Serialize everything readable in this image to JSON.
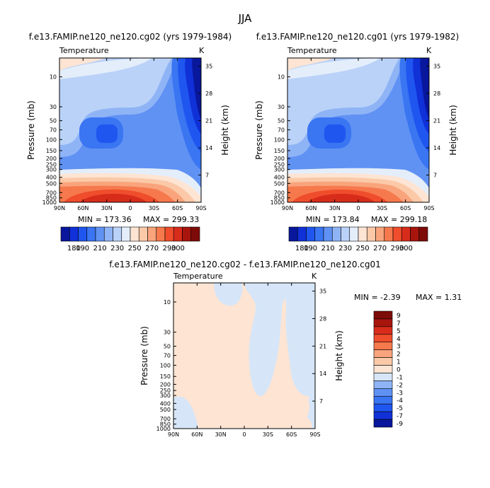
{
  "figure": {
    "main_title": "JJA"
  },
  "colors": {
    "abs_scale": [
      "#08179c",
      "#1030d8",
      "#1f56f0",
      "#3a75f2",
      "#6092f4",
      "#8fb4f6",
      "#bad2f8",
      "#e4eefb",
      "#fde4d3",
      "#fbc9a8",
      "#f9a47c",
      "#f6794d",
      "#ef4d2c",
      "#d82c1b",
      "#a8150d",
      "#7d0b08"
    ],
    "diff_scale": [
      "#08179c",
      "#1030d8",
      "#1f56f0",
      "#3a75f2",
      "#6092f4",
      "#8fb4f6",
      "#d6e6f8",
      "#fde4d3",
      "#fbc9a8",
      "#f9a47c",
      "#f6794d",
      "#ef4d2c",
      "#d82c1b",
      "#a8150d",
      "#7d0b08"
    ]
  },
  "chart_data": [
    {
      "type": "heatmap",
      "id": "p1",
      "title": "f.e13.FAMIP.ne120_ne120.cg02 (yrs 1979-1984)",
      "variable": "Temperature",
      "units": "K",
      "xlabel": "",
      "ylabel": "Pressure (mb)",
      "y2label": "Height (km)",
      "x_ticks": [
        "90N",
        "60N",
        "30N",
        "0",
        "30S",
        "60S",
        "90S"
      ],
      "y_ticks": [
        "10",
        "30",
        "50",
        "70",
        "100",
        "150",
        "200",
        "250",
        "300",
        "400",
        "500",
        "700",
        "850",
        "1000"
      ],
      "y2_ticks": [
        "35",
        "28",
        "21",
        "14",
        "7"
      ],
      "min_label": "MIN = 173.36",
      "max_label": "MAX = 299.33",
      "min": 173.36,
      "max": 299.33,
      "colorbar_labels": [
        "180",
        "190",
        "210",
        "230",
        "250",
        "270",
        "290",
        "300"
      ],
      "colorbar_levels": [
        180,
        190,
        200,
        210,
        220,
        230,
        240,
        250,
        260,
        270,
        280,
        290,
        300
      ]
    },
    {
      "type": "heatmap",
      "id": "p2",
      "title": "f.e13.FAMIP.ne120_ne120.cg01 (yrs 1979-1982)",
      "variable": "Temperature",
      "units": "K",
      "xlabel": "",
      "ylabel": "Pressure (mb)",
      "y2label": "Height (km)",
      "x_ticks": [
        "90N",
        "60N",
        "30N",
        "0",
        "30S",
        "60S",
        "90S"
      ],
      "y_ticks": [
        "10",
        "30",
        "50",
        "70",
        "100",
        "150",
        "200",
        "250",
        "300",
        "400",
        "500",
        "700",
        "850",
        "1000"
      ],
      "y2_ticks": [
        "35",
        "28",
        "21",
        "14",
        "7"
      ],
      "min_label": "MIN = 173.84",
      "max_label": "MAX = 299.18",
      "min": 173.84,
      "max": 299.18,
      "colorbar_labels": [
        "180",
        "190",
        "210",
        "230",
        "250",
        "270",
        "290",
        "300"
      ],
      "colorbar_levels": [
        180,
        190,
        200,
        210,
        220,
        230,
        240,
        250,
        260,
        270,
        280,
        290,
        300
      ]
    },
    {
      "type": "heatmap",
      "id": "p3",
      "title": "f.e13.FAMIP.ne120_ne120.cg02 - f.e13.FAMIP.ne120_ne120.cg01",
      "variable": "Temperature",
      "units": "K",
      "xlabel": "",
      "ylabel": "Pressure (mb)",
      "y2label": "Height (km)",
      "x_ticks": [
        "90N",
        "60N",
        "30N",
        "0",
        "30S",
        "60S",
        "90S"
      ],
      "y_ticks": [
        "10",
        "30",
        "50",
        "70",
        "100",
        "150",
        "200",
        "250",
        "300",
        "400",
        "500",
        "700",
        "850",
        "1000"
      ],
      "y2_ticks": [
        "35",
        "28",
        "21",
        "14",
        "7"
      ],
      "min_label": "MIN =  -2.39",
      "max_label": "MAX =   1.31",
      "min": -2.39,
      "max": 1.31,
      "colorbar_labels": [
        "9",
        "7",
        "5",
        "4",
        "3",
        "2",
        "1",
        "0",
        "-1",
        "-2",
        "-3",
        "-4",
        "-5",
        "-7",
        "-9"
      ],
      "colorbar_levels": [
        9,
        7,
        5,
        4,
        3,
        2,
        1,
        0,
        -1,
        -2,
        -3,
        -4,
        -5,
        -7,
        -9
      ]
    }
  ]
}
